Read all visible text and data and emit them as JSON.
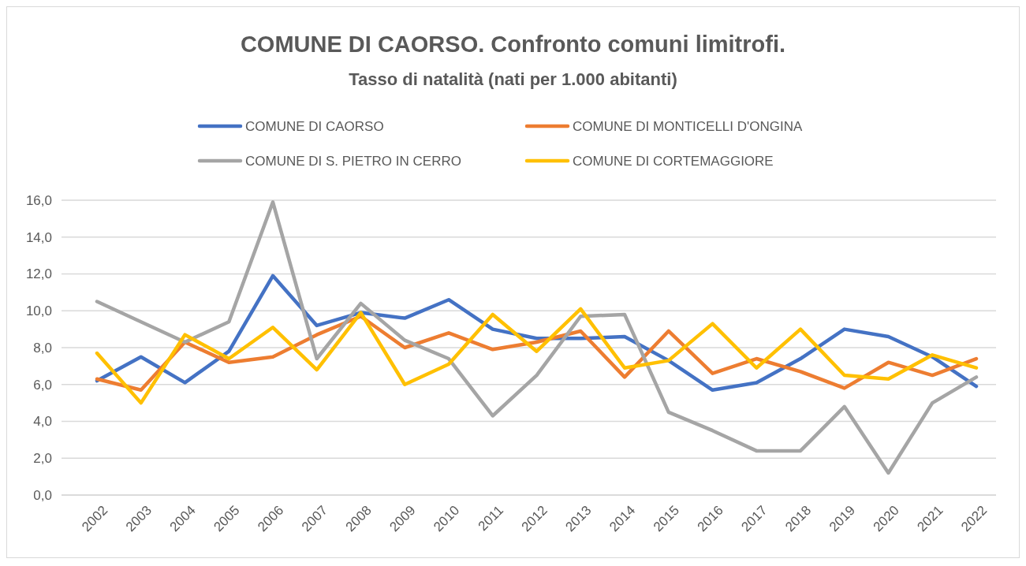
{
  "chart_data": {
    "type": "line",
    "title": "COMUNE DI CAORSO. Confronto comuni limitrofi.",
    "subtitle": "Tasso di natalità (nati per 1.000 abitanti)",
    "categories": [
      "2002",
      "2003",
      "2004",
      "2005",
      "2006",
      "2007",
      "2008",
      "2009",
      "2010",
      "2011",
      "2012",
      "2013",
      "2014",
      "2015",
      "2016",
      "2017",
      "2018",
      "2019",
      "2020",
      "2021",
      "2022"
    ],
    "series": [
      {
        "name": "COMUNE DI CAORSO",
        "color": "#4472c4",
        "values": [
          6.2,
          7.5,
          6.1,
          7.8,
          11.9,
          9.2,
          9.9,
          9.6,
          10.6,
          9.0,
          8.5,
          8.5,
          8.6,
          7.3,
          5.7,
          6.1,
          7.4,
          9.0,
          8.6,
          7.5,
          5.9
        ]
      },
      {
        "name": "COMUNE DI MONTICELLI D'ONGINA",
        "color": "#ed7d31",
        "values": [
          6.3,
          5.7,
          8.3,
          7.2,
          7.5,
          8.7,
          9.7,
          8.0,
          8.8,
          7.9,
          8.3,
          8.9,
          6.4,
          8.9,
          6.6,
          7.4,
          6.7,
          5.8,
          7.2,
          6.5,
          7.4
        ]
      },
      {
        "name": "COMUNE DI S. PIETRO IN CERRO",
        "color": "#a5a5a5",
        "values": [
          10.5,
          9.4,
          8.3,
          9.4,
          15.9,
          7.4,
          10.4,
          8.4,
          7.4,
          4.3,
          6.5,
          9.7,
          9.8,
          4.5,
          3.5,
          2.4,
          2.4,
          4.8,
          1.2,
          5.0,
          6.4
        ]
      },
      {
        "name": "COMUNE DI CORTEMAGGIORE",
        "color": "#ffc000",
        "values": [
          7.7,
          5.0,
          8.7,
          7.4,
          9.1,
          6.8,
          9.9,
          6.0,
          7.1,
          9.8,
          7.8,
          10.1,
          6.9,
          7.3,
          9.3,
          6.9,
          9.0,
          6.5,
          6.3,
          7.6,
          6.9
        ]
      }
    ],
    "ylim": [
      0,
      16
    ],
    "yticks": [
      {
        "value": 0,
        "label": "0,0"
      },
      {
        "value": 2,
        "label": "2,0"
      },
      {
        "value": 4,
        "label": "4,0"
      },
      {
        "value": 6,
        "label": "6,0"
      },
      {
        "value": 8,
        "label": "8,0"
      },
      {
        "value": 10,
        "label": "10,0"
      },
      {
        "value": 12,
        "label": "12,0"
      },
      {
        "value": 14,
        "label": "14,0"
      },
      {
        "value": 16,
        "label": "16,0"
      }
    ],
    "grid": "y",
    "legend": "top",
    "marker": "none",
    "line_style": "solid"
  }
}
